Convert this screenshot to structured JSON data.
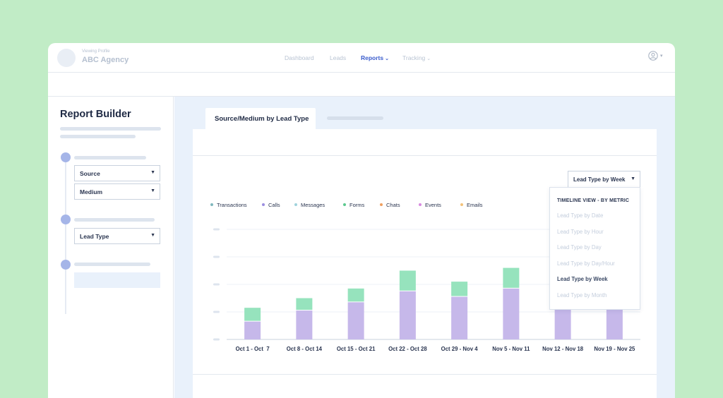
{
  "header": {
    "profile_caption": "Viewing Profile",
    "profile_name": "ABC Agency",
    "nav": [
      {
        "label": "Dashboard",
        "active": false,
        "dropdown": false
      },
      {
        "label": "Leads",
        "active": false,
        "dropdown": false
      },
      {
        "label": "Reports",
        "active": true,
        "dropdown": true
      },
      {
        "label": "Tracking",
        "active": false,
        "dropdown": true
      }
    ],
    "user_icon": "user-circle-icon"
  },
  "sidebar": {
    "title": "Report Builder",
    "fields": {
      "source": "Source",
      "medium": "Medium",
      "lead_type": "Lead Type"
    }
  },
  "main": {
    "tab_active": "Source/Medium by Lead Type",
    "timeline_select": "Lead Type by Week"
  },
  "legend": [
    {
      "name": "Transactions",
      "color": "#7fb7bd"
    },
    {
      "name": "Calls",
      "color": "#9b8fe0"
    },
    {
      "name": "Messages",
      "color": "#9fd3dc"
    },
    {
      "name": "Forms",
      "color": "#5cc98f"
    },
    {
      "name": "Chats",
      "color": "#f0a060"
    },
    {
      "name": "Events",
      "color": "#d88be0"
    },
    {
      "name": "Emails",
      "color": "#f2c27a"
    }
  ],
  "dropdown": {
    "header": "TIMELINE VIEW - BY METRIC",
    "options": [
      {
        "label": "Lead Type by Date",
        "selected": false
      },
      {
        "label": "Lead Type by Hour",
        "selected": false
      },
      {
        "label": "Lead Type by Day",
        "selected": false
      },
      {
        "label": "Lead Type by Day/Hour",
        "selected": false
      },
      {
        "label": "Lead Type by Week",
        "selected": true
      },
      {
        "label": "Lead Type by Month",
        "selected": false
      }
    ]
  },
  "chart_data": {
    "type": "bar",
    "stacked": true,
    "categories": [
      "Oct 1 - Oct  7",
      "Oct 8 - Oct 14",
      "Oct 15 - Oct 21",
      "Oct 22 - Oct 28",
      "Oct 29 - Nov 4",
      "Nov 5 - Nov 11",
      "Nov 12 - Nov 18",
      "Nov 19 - Nov 25"
    ],
    "series": [
      {
        "name": "Calls",
        "color": "#c6b8ea",
        "values": [
          1.3,
          2.1,
          2.7,
          3.5,
          3.1,
          3.7,
          4.1,
          3.0
        ]
      },
      {
        "name": "Forms",
        "color": "#96e3bd",
        "values": [
          1.0,
          0.9,
          1.0,
          1.5,
          1.1,
          1.5,
          2.5,
          1.4
        ]
      }
    ],
    "ylim": [
      0,
      8
    ],
    "grid": true,
    "legend_position": "top-left"
  }
}
